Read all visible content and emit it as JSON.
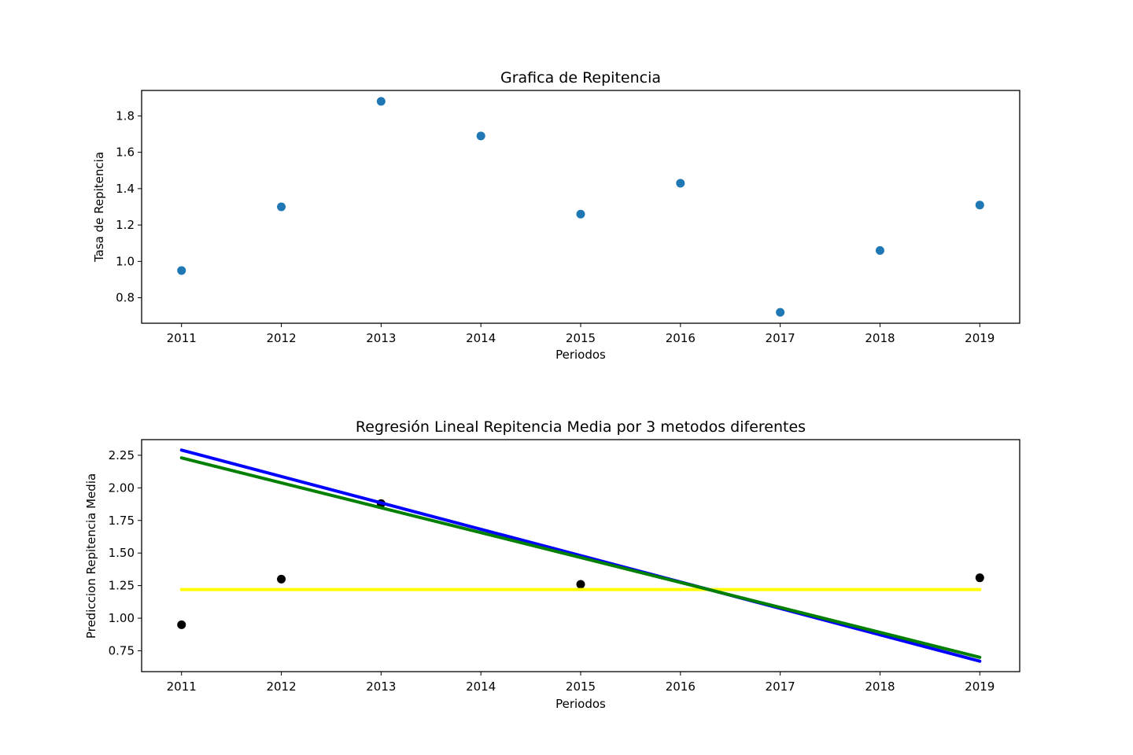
{
  "chart_data": [
    {
      "type": "scatter",
      "title": "Grafica de Repitencia",
      "xlabel": "Periodos",
      "ylabel": "Tasa de Repitencia",
      "xlim": [
        2010.6,
        2019.4
      ],
      "ylim": [
        0.66,
        1.94
      ],
      "xticks": [
        2011,
        2012,
        2013,
        2014,
        2015,
        2016,
        2017,
        2018,
        2019
      ],
      "xtick_labels": [
        "2011",
        "2012",
        "2013",
        "2014",
        "2015",
        "2016",
        "2017",
        "2018",
        "2019"
      ],
      "yticks": [
        0.8,
        1.0,
        1.2,
        1.4,
        1.6,
        1.8
      ],
      "ytick_labels": [
        "0.8",
        "1.0",
        "1.2",
        "1.4",
        "1.6",
        "1.8"
      ],
      "series": [
        {
          "name": "Tasa de Repitencia",
          "color": "#1f77b4",
          "x": [
            2011,
            2012,
            2013,
            2014,
            2015,
            2016,
            2017,
            2018,
            2019
          ],
          "y": [
            0.95,
            1.3,
            1.88,
            1.69,
            1.26,
            1.43,
            0.72,
            1.06,
            1.31
          ]
        }
      ]
    },
    {
      "type": "line",
      "title": "Regresión Lineal Repitencia Media por 3 metodos diferentes",
      "xlabel": "Periodos",
      "ylabel": "Prediccion Repitencia Media",
      "xlim": [
        2010.6,
        2019.4
      ],
      "ylim": [
        0.59,
        2.37
      ],
      "xticks": [
        2011,
        2012,
        2013,
        2014,
        2015,
        2016,
        2017,
        2018,
        2019
      ],
      "xtick_labels": [
        "2011",
        "2012",
        "2013",
        "2014",
        "2015",
        "2016",
        "2017",
        "2018",
        "2019"
      ],
      "yticks": [
        0.75,
        1.0,
        1.25,
        1.5,
        1.75,
        2.0,
        2.25
      ],
      "ytick_labels": [
        "0.75",
        "1.00",
        "1.25",
        "1.50",
        "1.75",
        "2.00",
        "2.25"
      ],
      "points": {
        "color": "#000000",
        "x": [
          2011,
          2012,
          2013,
          2015,
          2019
        ],
        "y": [
          0.95,
          1.3,
          1.88,
          1.26,
          1.31
        ]
      },
      "series": [
        {
          "name": "yellow",
          "color": "#ffff00",
          "x": [
            2011,
            2019
          ],
          "y": [
            1.22,
            1.22
          ]
        },
        {
          "name": "blue",
          "color": "#0000ff",
          "x": [
            2011,
            2019
          ],
          "y": [
            2.29,
            0.67
          ]
        },
        {
          "name": "green",
          "color": "#008000",
          "x": [
            2011,
            2019
          ],
          "y": [
            2.23,
            0.7
          ]
        }
      ]
    }
  ]
}
